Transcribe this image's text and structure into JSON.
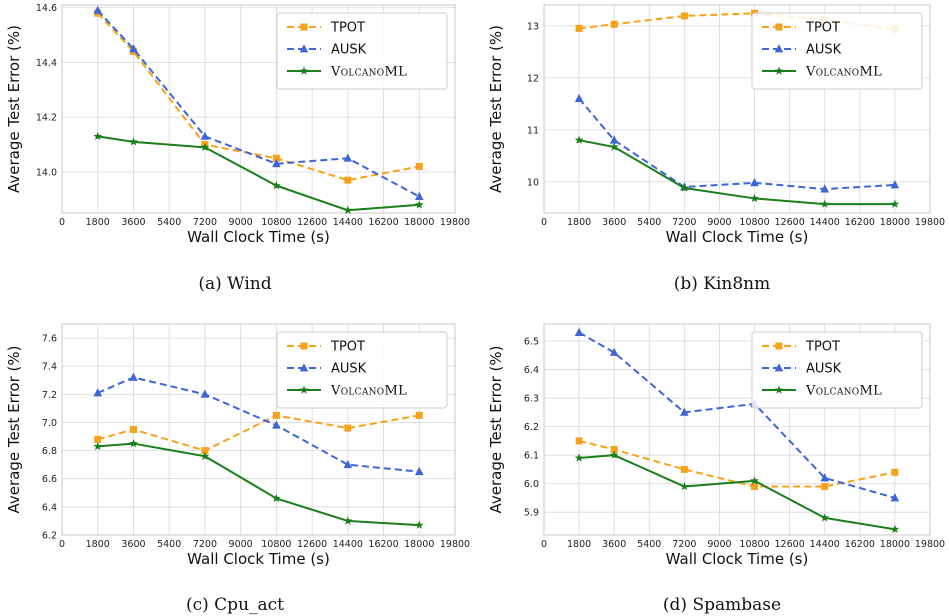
{
  "chart_data": [
    {
      "type": "line",
      "caption": "(a) Wind",
      "xlabel": "Wall Clock Time (s)",
      "ylabel": "Average Test Error (%)",
      "xlim": [
        0,
        19800
      ],
      "xticks": [
        0,
        1800,
        3600,
        5400,
        7200,
        9000,
        10800,
        12600,
        14400,
        16200,
        18000,
        19800
      ],
      "ylim": [
        13.85,
        14.61
      ],
      "yticks": [
        14.0,
        14.2,
        14.4,
        14.6
      ],
      "ytick_labels": [
        "14.0",
        "14.2",
        "14.4",
        "14.6"
      ],
      "legend_position": "top-right",
      "x": [
        1800,
        3600,
        7200,
        10800,
        14400,
        18000
      ],
      "series": [
        {
          "name": "TPOT",
          "color": "#f7a21b",
          "marker": "square",
          "dash": true,
          "values": [
            14.58,
            14.44,
            14.1,
            14.05,
            13.97,
            14.02
          ]
        },
        {
          "name": "AUSK",
          "color": "#3e66d6",
          "marker": "triangle",
          "dash": true,
          "values": [
            14.59,
            14.45,
            14.13,
            14.03,
            14.05,
            13.91
          ]
        },
        {
          "name": "VolcanoML",
          "color": "#1a7f1a",
          "marker": "star",
          "dash": false,
          "values": [
            14.13,
            14.11,
            14.09,
            13.95,
            13.86,
            13.88
          ]
        }
      ]
    },
    {
      "type": "line",
      "caption": "(b) Kin8nm",
      "xlabel": "Wall Clock Time (s)",
      "ylabel": "Average Test Error (%)",
      "xlim": [
        0,
        19800
      ],
      "xticks": [
        0,
        1800,
        3600,
        5400,
        7200,
        9000,
        10800,
        12600,
        14400,
        16200,
        18000,
        19800
      ],
      "ylim": [
        9.4,
        13.4
      ],
      "yticks": [
        10,
        11,
        12,
        13
      ],
      "ytick_labels": [
        "10",
        "11",
        "12",
        "13"
      ],
      "legend_position": "top-right",
      "x": [
        1800,
        3600,
        7200,
        10800,
        14400,
        18000
      ],
      "series": [
        {
          "name": "TPOT",
          "color": "#f7a21b",
          "marker": "square",
          "dash": true,
          "values": [
            12.95,
            13.03,
            13.19,
            13.24,
            13.12,
            12.93
          ]
        },
        {
          "name": "AUSK",
          "color": "#3e66d6",
          "marker": "triangle",
          "dash": true,
          "values": [
            11.6,
            10.8,
            9.9,
            9.98,
            9.86,
            9.94
          ]
        },
        {
          "name": "VolcanoML",
          "color": "#1a7f1a",
          "marker": "star",
          "dash": false,
          "values": [
            10.8,
            10.67,
            9.88,
            9.68,
            9.57,
            9.57
          ]
        }
      ]
    },
    {
      "type": "line",
      "caption": "(c) Cpu_act",
      "xlabel": "Wall Clock Time (s)",
      "ylabel": "Average Test Error (%)",
      "xlim": [
        0,
        19800
      ],
      "xticks": [
        0,
        1800,
        3600,
        5400,
        7200,
        9000,
        10800,
        12600,
        14400,
        16200,
        18000,
        19800
      ],
      "ylim": [
        6.2,
        7.7
      ],
      "yticks": [
        6.2,
        6.4,
        6.6,
        6.8,
        7.0,
        7.2,
        7.4,
        7.6
      ],
      "ytick_labels": [
        "6.2",
        "6.4",
        "6.6",
        "6.8",
        "7.0",
        "7.2",
        "7.4",
        "7.6"
      ],
      "legend_position": "top-right",
      "x": [
        1800,
        3600,
        7200,
        10800,
        14400,
        18000
      ],
      "series": [
        {
          "name": "TPOT",
          "color": "#f7a21b",
          "marker": "square",
          "dash": true,
          "values": [
            6.88,
            6.95,
            6.8,
            7.05,
            6.96,
            7.05
          ]
        },
        {
          "name": "AUSK",
          "color": "#3e66d6",
          "marker": "triangle",
          "dash": true,
          "values": [
            7.21,
            7.32,
            7.2,
            6.98,
            6.7,
            6.65
          ]
        },
        {
          "name": "VolcanoML",
          "color": "#1a7f1a",
          "marker": "star",
          "dash": false,
          "values": [
            6.83,
            6.85,
            6.76,
            6.46,
            6.3,
            6.27
          ]
        }
      ]
    },
    {
      "type": "line",
      "caption": "(d) Spambase",
      "xlabel": "Wall Clock Time (s)",
      "ylabel": "Average Test Error (%)",
      "xlim": [
        0,
        19800
      ],
      "xticks": [
        0,
        1800,
        3600,
        5400,
        7200,
        9000,
        10800,
        12600,
        14400,
        16200,
        18000,
        19800
      ],
      "ylim": [
        5.82,
        6.56
      ],
      "yticks": [
        5.9,
        6.0,
        6.1,
        6.2,
        6.3,
        6.4,
        6.5
      ],
      "ytick_labels": [
        "5.9",
        "6.0",
        "6.1",
        "6.2",
        "6.3",
        "6.4",
        "6.5"
      ],
      "legend_position": "top-right",
      "x": [
        1800,
        3600,
        7200,
        10800,
        14400,
        18000
      ],
      "series": [
        {
          "name": "TPOT",
          "color": "#f7a21b",
          "marker": "square",
          "dash": true,
          "values": [
            6.15,
            6.12,
            6.05,
            5.99,
            5.99,
            6.04
          ]
        },
        {
          "name": "AUSK",
          "color": "#3e66d6",
          "marker": "triangle",
          "dash": true,
          "values": [
            6.53,
            6.46,
            6.25,
            6.28,
            6.02,
            5.95
          ]
        },
        {
          "name": "VolcanoML",
          "color": "#1a7f1a",
          "marker": "star",
          "dash": false,
          "values": [
            6.09,
            6.1,
            5.99,
            6.01,
            5.88,
            5.84
          ]
        }
      ]
    }
  ]
}
